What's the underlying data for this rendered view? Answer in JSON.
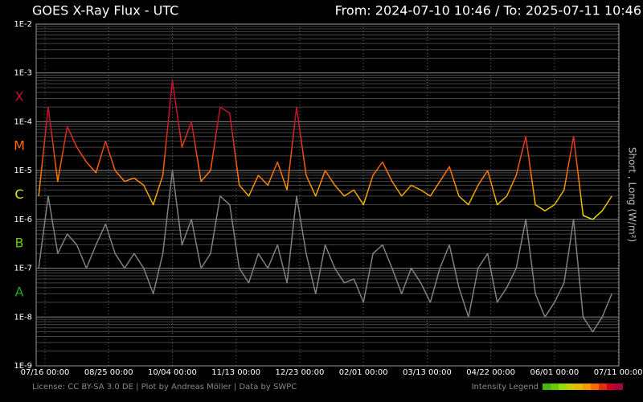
{
  "chart_data": {
    "type": "line",
    "title": "GOES X-Ray Flux - UTC",
    "subtitle": "From: 2024-07-10 10:46  /  To: 2025-07-11 10:46",
    "y_label": "Short , Long (W/m²)",
    "log_scale": true,
    "grid": true,
    "xlim": [
      "2024-07-10 10:46",
      "2025-07-11 10:46"
    ],
    "xticks": [
      {
        "value": "2024-07-16 00:00",
        "label": "07/16 00:00"
      },
      {
        "value": "2024-08-25 00:00",
        "label": "08/25 00:00"
      },
      {
        "value": "2024-10-04 00:00",
        "label": "10/04 00:00"
      },
      {
        "value": "2024-11-13 00:00",
        "label": "11/13 00:00"
      },
      {
        "value": "2024-12-23 00:00",
        "label": "12/23 00:00"
      },
      {
        "value": "2025-02-01 00:00",
        "label": "02/01 00:00"
      },
      {
        "value": "2025-03-13 00:00",
        "label": "03/13 00:00"
      },
      {
        "value": "2025-04-22 00:00",
        "label": "04/22 00:00"
      },
      {
        "value": "2025-06-01 00:00",
        "label": "06/01 00:00"
      },
      {
        "value": "2025-07-11 00:00",
        "label": "07/11 00:00"
      }
    ],
    "ylim": [
      1e-09,
      0.01
    ],
    "yticks": [
      {
        "value": 0.01,
        "label": "1E-2"
      },
      {
        "value": 0.001,
        "label": "1E-3"
      },
      {
        "value": 0.0001,
        "label": "1E-4"
      },
      {
        "value": 1e-05,
        "label": "1E-5"
      },
      {
        "value": 1e-06,
        "label": "1E-6"
      },
      {
        "value": 1e-07,
        "label": "1E-7"
      },
      {
        "value": 1e-08,
        "label": "1E-8"
      },
      {
        "value": 1e-09,
        "label": "1E-9"
      }
    ],
    "classes": [
      {
        "label": "X",
        "value": 0.0001,
        "color": "#c8102e"
      },
      {
        "label": "M",
        "value": 1e-05,
        "color": "#ff6a00"
      },
      {
        "label": "C",
        "value": 1e-06,
        "color": "#e6e600"
      },
      {
        "label": "B",
        "value": 1e-07,
        "color": "#66cc00"
      },
      {
        "label": "A",
        "value": 1e-08,
        "color": "#22aa22"
      }
    ],
    "x": [
      "2024-07-12 00:00",
      "2024-07-18 00:00",
      "2024-07-24 00:00",
      "2024-07-30 00:00",
      "2024-08-05 00:00",
      "2024-08-11 00:00",
      "2024-08-17 00:00",
      "2024-08-23 00:00",
      "2024-08-29 00:00",
      "2024-09-04 00:00",
      "2024-09-10 00:00",
      "2024-09-16 00:00",
      "2024-09-22 00:00",
      "2024-09-28 00:00",
      "2024-10-04 00:00",
      "2024-10-10 00:00",
      "2024-10-16 00:00",
      "2024-10-22 00:00",
      "2024-10-28 00:00",
      "2024-11-03 00:00",
      "2024-11-09 00:00",
      "2024-11-15 00:00",
      "2024-11-21 00:00",
      "2024-11-27 00:00",
      "2024-12-03 00:00",
      "2024-12-09 00:00",
      "2024-12-15 00:00",
      "2024-12-21 00:00",
      "2024-12-27 00:00",
      "2025-01-02 00:00",
      "2025-01-08 00:00",
      "2025-01-14 00:00",
      "2025-01-20 00:00",
      "2025-01-26 00:00",
      "2025-02-01 00:00",
      "2025-02-07 00:00",
      "2025-02-13 00:00",
      "2025-02-19 00:00",
      "2025-02-25 00:00",
      "2025-03-03 00:00",
      "2025-03-09 00:00",
      "2025-03-15 00:00",
      "2025-03-21 00:00",
      "2025-03-27 00:00",
      "2025-04-02 00:00",
      "2025-04-08 00:00",
      "2025-04-14 00:00",
      "2025-04-20 00:00",
      "2025-04-26 00:00",
      "2025-05-02 00:00",
      "2025-05-08 00:00",
      "2025-05-14 00:00",
      "2025-05-20 00:00",
      "2025-05-26 00:00",
      "2025-06-01 00:00",
      "2025-06-07 00:00",
      "2025-06-13 00:00",
      "2025-06-19 00:00",
      "2025-06-25 00:00",
      "2025-07-01 00:00",
      "2025-07-07 00:00"
    ],
    "series": [
      {
        "color": "#808080",
        "values": [
          1e-07,
          3e-06,
          2e-07,
          5e-07,
          3e-07,
          1e-07,
          3e-07,
          8e-07,
          2e-07,
          1e-07,
          2e-07,
          1e-07,
          3e-08,
          2e-07,
          1e-05,
          3e-07,
          1e-06,
          1e-07,
          2e-07,
          3e-06,
          2e-06,
          1e-07,
          5e-08,
          2e-07,
          1e-07,
          3e-07,
          5e-08,
          3e-06,
          2e-07,
          3e-08,
          3e-07,
          1e-07,
          5e-08,
          6e-08,
          2e-08,
          2e-07,
          3e-07,
          1e-07,
          3e-08,
          1e-07,
          5e-08,
          2e-08,
          1e-07,
          3e-07,
          4e-08,
          1e-08,
          1e-07,
          2e-07,
          2e-08,
          4e-08,
          1e-07,
          1e-06,
          3e-08,
          1e-08,
          2e-08,
          5e-08,
          1e-06,
          1e-08,
          5e-09,
          1e-08,
          3e-08
        ]
      },
      {
        "values": [
          3e-06,
          0.0002,
          6e-06,
          8e-05,
          3e-05,
          1.5e-05,
          9e-06,
          4e-05,
          1e-05,
          6e-06,
          7e-06,
          5e-06,
          2e-06,
          8e-06,
          0.0007,
          3e-05,
          0.0001,
          6e-06,
          1e-05,
          0.0002,
          0.00015,
          5e-06,
          3e-06,
          8e-06,
          5e-06,
          1.5e-05,
          4e-06,
          0.0002,
          8e-06,
          3e-06,
          1e-05,
          5e-06,
          3e-06,
          4e-06,
          2e-06,
          8e-06,
          1.5e-05,
          6e-06,
          3e-06,
          5e-06,
          4e-06,
          3e-06,
          6e-06,
          1.2e-05,
          3e-06,
          2e-06,
          5e-06,
          1e-05,
          2e-06,
          3e-06,
          8e-06,
          5e-05,
          2e-06,
          1.5e-06,
          2e-06,
          4e-06,
          5e-05,
          1.2e-06,
          1e-06,
          1.5e-06,
          3e-06
        ]
      }
    ],
    "footer": "License: CC BY-SA 3.0 DE | Plot by Andreas Möller | Data by SWPC",
    "legend_label": "Intensity Legend",
    "legend_colors": [
      "#44bb00",
      "#66cc00",
      "#99dd00",
      "#cccc00",
      "#e6b800",
      "#ff9900",
      "#ff6a00",
      "#e62e00",
      "#cc0022",
      "#aa0044"
    ]
  }
}
